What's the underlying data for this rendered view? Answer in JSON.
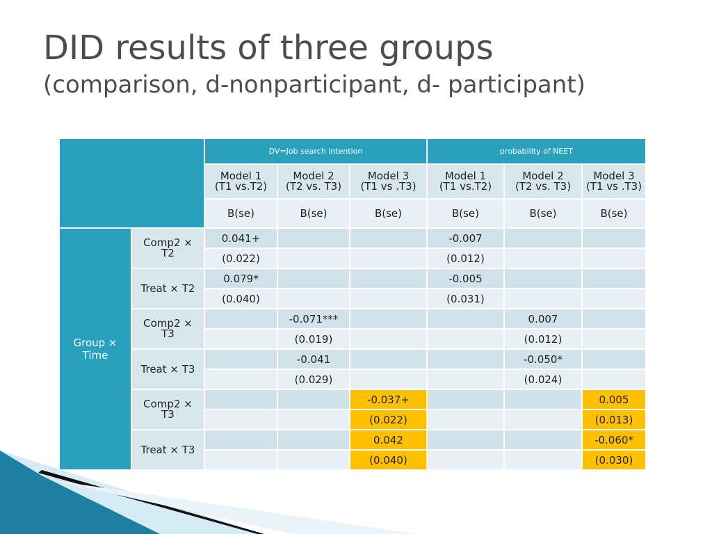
{
  "title": {
    "line1": "DID results of three groups",
    "line2": "(comparison, d-nonparticipant, d- participant)"
  },
  "table": {
    "group_headers": [
      "DV=Job search intention",
      "probability of NEET"
    ],
    "models": [
      {
        "name": "Model 1",
        "sub": "(T1 vs.T2)"
      },
      {
        "name": "Model 2",
        "sub": "(T2 vs. T3)"
      },
      {
        "name": "Model 3",
        "sub": "(T1 vs .T3)"
      },
      {
        "name": "Model 1",
        "sub": "(T1 vs.T2)"
      },
      {
        "name": "Model 2",
        "sub": "(T2 vs. T3)"
      },
      {
        "name": "Model 3",
        "sub": "(T1 vs .T3)"
      }
    ],
    "stat_label": "B(se)",
    "side_group": {
      "line1": "Group ×",
      "line2": "Time"
    },
    "row_labels": [
      {
        "line1": "Comp2 ×",
        "line2": "T2"
      },
      {
        "line1": "Treat × T2",
        "line2": ""
      },
      {
        "line1": "Comp2 ×",
        "line2": "T3"
      },
      {
        "line1": "Treat × T3",
        "line2": ""
      },
      {
        "line1": "Comp2 ×",
        "line2": "T3"
      },
      {
        "line1": "Treat × T3",
        "line2": ""
      }
    ],
    "rows": [
      [
        "0.041+",
        "",
        "",
        "-0.007",
        "",
        ""
      ],
      [
        "(0.022)",
        "",
        "",
        "(0.012)",
        "",
        ""
      ],
      [
        "0.079*",
        "",
        "",
        "-0.005",
        "",
        ""
      ],
      [
        "(0.040)",
        "",
        "",
        "(0.031)",
        "",
        ""
      ],
      [
        "",
        "-0.071***",
        "",
        "",
        "0.007",
        ""
      ],
      [
        "",
        "(0.019)",
        "",
        "",
        "(0.012)",
        ""
      ],
      [
        "",
        "-0.041",
        "",
        "",
        "-0.050*",
        ""
      ],
      [
        "",
        "(0.029)",
        "",
        "",
        "(0.024)",
        ""
      ],
      [
        "",
        "",
        "-0.037+",
        "",
        "",
        "0.005"
      ],
      [
        "",
        "",
        "(0.022)",
        "",
        "",
        "(0.013)"
      ],
      [
        "",
        "",
        "0.042",
        "",
        "",
        "-0.060*"
      ],
      [
        "",
        "",
        "(0.040)",
        "",
        "",
        "(0.030)"
      ]
    ],
    "highlight_color": "#ffc000",
    "header_color": "#2aa0bf"
  }
}
